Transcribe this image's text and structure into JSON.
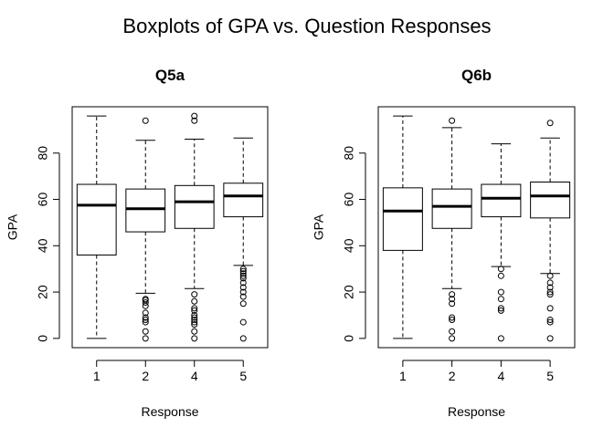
{
  "title": "Boxplots of GPA vs. Question Responses",
  "chart_data": [
    {
      "type": "boxplot",
      "title": "Q5a",
      "xlabel": "Response",
      "ylabel": "GPA",
      "ylim": [
        -4,
        100
      ],
      "yticks": [
        0,
        20,
        40,
        60,
        80
      ],
      "categories": [
        "1",
        "2",
        "4",
        "5"
      ],
      "boxes": [
        {
          "category": "1",
          "min": 0,
          "q1": 36,
          "median": 57.5,
          "q3": 66.5,
          "max": 96,
          "outliers": []
        },
        {
          "category": "2",
          "min": 19.5,
          "q1": 46,
          "median": 56,
          "q3": 64.5,
          "max": 85.5,
          "outliers": [
            94,
            17,
            16.5,
            15.5,
            14,
            11,
            9,
            8,
            7,
            3,
            0
          ]
        },
        {
          "category": "4",
          "min": 21.5,
          "q1": 47.5,
          "median": 59,
          "q3": 66,
          "max": 86,
          "outliers": [
            96,
            94,
            19,
            16,
            13,
            12,
            10,
            9,
            8,
            7,
            6,
            3,
            0
          ]
        },
        {
          "category": "5",
          "min": 31.5,
          "q1": 52.5,
          "median": 61.5,
          "q3": 67,
          "max": 86.5,
          "outliers": [
            30,
            29,
            28,
            27,
            26,
            24,
            22,
            20,
            18,
            15,
            7,
            0
          ]
        }
      ]
    },
    {
      "type": "boxplot",
      "title": "Q6b",
      "xlabel": "Response",
      "ylabel": "GPA",
      "ylim": [
        -4,
        100
      ],
      "yticks": [
        0,
        20,
        40,
        60,
        80
      ],
      "categories": [
        "1",
        "2",
        "4",
        "5"
      ],
      "boxes": [
        {
          "category": "1",
          "min": 0,
          "q1": 38,
          "median": 55,
          "q3": 65,
          "max": 96,
          "outliers": []
        },
        {
          "category": "2",
          "min": 21.5,
          "q1": 47.5,
          "median": 57,
          "q3": 64.5,
          "max": 91,
          "outliers": [
            94,
            19,
            17,
            15,
            9,
            8,
            3,
            0
          ]
        },
        {
          "category": "4",
          "min": 31,
          "q1": 52.5,
          "median": 60.5,
          "q3": 66.5,
          "max": 84,
          "outliers": [
            30,
            27,
            20,
            17,
            13,
            12,
            0
          ]
        },
        {
          "category": "5",
          "min": 28,
          "q1": 52,
          "median": 61.5,
          "q3": 67.5,
          "max": 86.5,
          "outliers": [
            93,
            27,
            24,
            22,
            20,
            19,
            13,
            8,
            7,
            0
          ]
        }
      ]
    }
  ]
}
